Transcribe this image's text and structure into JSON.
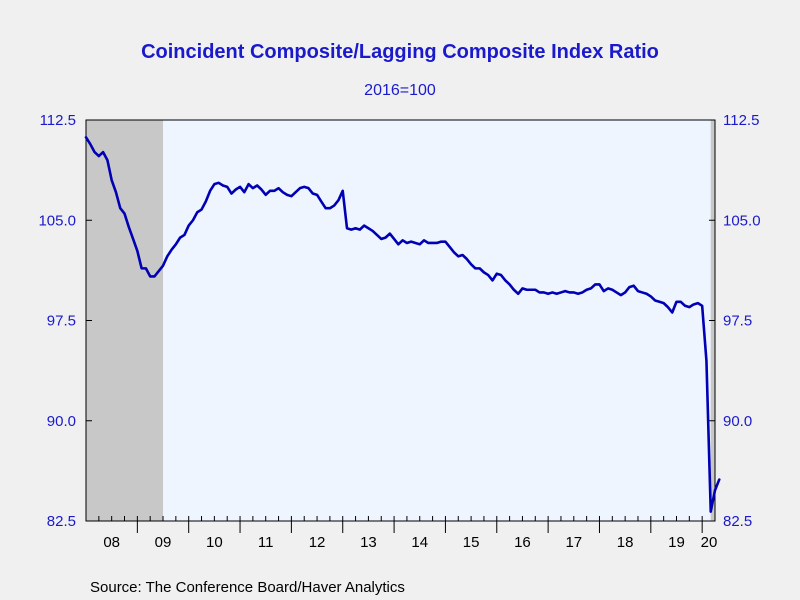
{
  "chart_data": {
    "type": "line",
    "title": "Coincident Composite/Lagging Composite Index Ratio",
    "subtitle": "2016=100",
    "source": "Source:  The Conference Board/Haver Analytics",
    "ylim": [
      82.5,
      112.5
    ],
    "y_ticks": [
      "112.5",
      "105.0",
      "97.5",
      "90.0",
      "82.5"
    ],
    "x_tick_labels": [
      "08",
      "09",
      "10",
      "11",
      "12",
      "13",
      "14",
      "15",
      "16",
      "17",
      "18",
      "19",
      "20"
    ],
    "xlim": [
      2008.0,
      2020.25
    ],
    "grid": false,
    "recession_periods": [
      [
        2008.0,
        2009.5
      ],
      [
        2020.167,
        2020.5
      ]
    ],
    "colors": {
      "line": "#0000b4",
      "axis_text": "#1a1acc",
      "plot_background": "#eef5ff",
      "recession_shade": "#c8c8c8",
      "page_background": "#f0f0f0"
    },
    "series": [
      {
        "x": [
          2008.0,
          2008.083,
          2008.167,
          2008.25,
          2008.333,
          2008.417,
          2008.5,
          2008.583,
          2008.667,
          2008.75,
          2008.833,
          2008.917,
          2009.0,
          2009.083,
          2009.167,
          2009.25,
          2009.333,
          2009.417,
          2009.5,
          2009.583,
          2009.667,
          2009.75,
          2009.833,
          2009.917,
          2010.0,
          2010.083,
          2010.167,
          2010.25,
          2010.333,
          2010.417,
          2010.5,
          2010.583,
          2010.667,
          2010.75,
          2010.833,
          2010.917,
          2011.0,
          2011.083,
          2011.167,
          2011.25,
          2011.333,
          2011.417,
          2011.5,
          2011.583,
          2011.667,
          2011.75,
          2011.833,
          2011.917,
          2012.0,
          2012.083,
          2012.167,
          2012.25,
          2012.333,
          2012.417,
          2012.5,
          2012.583,
          2012.667,
          2012.75,
          2012.833,
          2012.917,
          2013.0,
          2013.083,
          2013.167,
          2013.25,
          2013.333,
          2013.417,
          2013.5,
          2013.583,
          2013.667,
          2013.75,
          2013.833,
          2013.917,
          2014.0,
          2014.083,
          2014.167,
          2014.25,
          2014.333,
          2014.417,
          2014.5,
          2014.583,
          2014.667,
          2014.75,
          2014.833,
          2014.917,
          2015.0,
          2015.083,
          2015.167,
          2015.25,
          2015.333,
          2015.417,
          2015.5,
          2015.583,
          2015.667,
          2015.75,
          2015.833,
          2015.917,
          2016.0,
          2016.083,
          2016.167,
          2016.25,
          2016.333,
          2016.417,
          2016.5,
          2016.583,
          2016.667,
          2016.75,
          2016.833,
          2016.917,
          2017.0,
          2017.083,
          2017.167,
          2017.25,
          2017.333,
          2017.417,
          2017.5,
          2017.583,
          2017.667,
          2017.75,
          2017.833,
          2017.917,
          2018.0,
          2018.083,
          2018.167,
          2018.25,
          2018.333,
          2018.417,
          2018.5,
          2018.583,
          2018.667,
          2018.75,
          2018.833,
          2018.917,
          2019.0,
          2019.083,
          2019.167,
          2019.25,
          2019.333,
          2019.417,
          2019.5,
          2019.583,
          2019.667,
          2019.75,
          2019.833,
          2019.917,
          2020.0,
          2020.083,
          2020.167,
          2020.25,
          2020.333
        ],
        "values": [
          111.2,
          110.7,
          110.1,
          109.8,
          110.1,
          109.5,
          108.0,
          107.1,
          105.9,
          105.5,
          104.5,
          103.6,
          102.7,
          101.4,
          101.4,
          100.8,
          100.8,
          101.2,
          101.6,
          102.3,
          102.8,
          103.2,
          103.7,
          103.9,
          104.6,
          105.0,
          105.6,
          105.8,
          106.4,
          107.2,
          107.7,
          107.8,
          107.6,
          107.5,
          107.0,
          107.3,
          107.5,
          107.1,
          107.7,
          107.4,
          107.6,
          107.3,
          106.9,
          107.2,
          107.2,
          107.4,
          107.1,
          106.9,
          106.8,
          107.1,
          107.4,
          107.5,
          107.4,
          107.0,
          106.9,
          106.4,
          105.9,
          105.9,
          106.1,
          106.5,
          107.2,
          104.4,
          104.3,
          104.4,
          104.3,
          104.6,
          104.4,
          104.2,
          103.9,
          103.6,
          103.7,
          104.0,
          103.6,
          103.2,
          103.5,
          103.3,
          103.4,
          103.3,
          103.2,
          103.5,
          103.3,
          103.3,
          103.3,
          103.4,
          103.4,
          103.0,
          102.6,
          102.3,
          102.4,
          102.1,
          101.7,
          101.4,
          101.4,
          101.1,
          100.9,
          100.5,
          101.0,
          100.9,
          100.5,
          100.2,
          99.8,
          99.5,
          99.9,
          99.8,
          99.8,
          99.8,
          99.6,
          99.6,
          99.5,
          99.6,
          99.5,
          99.6,
          99.7,
          99.6,
          99.6,
          99.5,
          99.6,
          99.8,
          99.9,
          100.2,
          100.2,
          99.7,
          99.9,
          99.8,
          99.6,
          99.4,
          99.6,
          100.0,
          100.1,
          99.7,
          99.6,
          99.5,
          99.3,
          99.0,
          98.9,
          98.8,
          98.5,
          98.1,
          98.9,
          98.9,
          98.6,
          98.5,
          98.7,
          98.8,
          98.6,
          94.5,
          83.2,
          84.8,
          85.6
        ]
      }
    ]
  }
}
